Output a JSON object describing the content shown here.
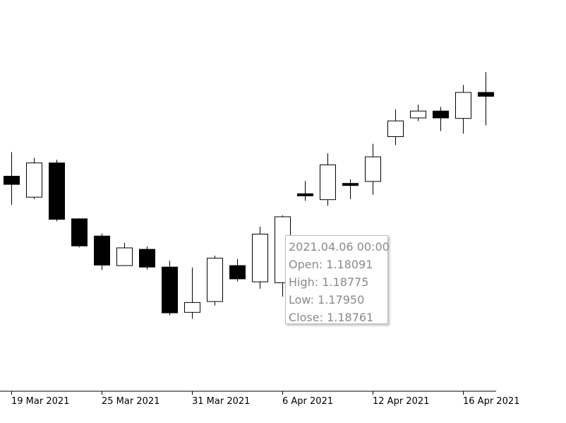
{
  "chart_data": {
    "type": "candlestick",
    "title": "",
    "xlabel": "",
    "ylabel": "",
    "x_tick_labels": [
      "19 Mar 2021",
      "25 Mar 2021",
      "31 Mar 2021",
      "6 Apr 2021",
      "12 Apr 2021",
      "16 Apr 2021"
    ],
    "candles": [
      {
        "open": 1.19173,
        "high": 1.19418,
        "low": 1.18883,
        "close": 1.1909
      },
      {
        "open": 1.1896,
        "high": 1.19361,
        "low": 1.18942,
        "close": 1.19308
      },
      {
        "open": 1.19308,
        "high": 1.1934,
        "low": 1.18715,
        "close": 1.18735
      },
      {
        "open": 1.1874,
        "high": 1.18745,
        "low": 1.1845,
        "close": 1.18465
      },
      {
        "open": 1.18565,
        "high": 1.1859,
        "low": 1.1822,
        "close": 1.1827
      },
      {
        "open": 1.18265,
        "high": 1.18496,
        "low": 1.1826,
        "close": 1.18445
      },
      {
        "open": 1.1843,
        "high": 1.1846,
        "low": 1.18225,
        "close": 1.1825
      },
      {
        "open": 1.1825,
        "high": 1.18315,
        "low": 1.1776,
        "close": 1.17785
      },
      {
        "open": 1.1779,
        "high": 1.18245,
        "low": 1.17725,
        "close": 1.1789
      },
      {
        "open": 1.179,
        "high": 1.18365,
        "low": 1.1786,
        "close": 1.1834
      },
      {
        "open": 1.18265,
        "high": 1.1833,
        "low": 1.18102,
        "close": 1.1813
      },
      {
        "open": 1.181,
        "high": 1.1866,
        "low": 1.1803,
        "close": 1.18585
      },
      {
        "open": 1.18091,
        "high": 1.18775,
        "low": 1.1795,
        "close": 1.18761
      },
      {
        "open": 1.18995,
        "high": 1.19125,
        "low": 1.18923,
        "close": 1.18983
      },
      {
        "open": 1.18935,
        "high": 1.19405,
        "low": 1.18873,
        "close": 1.19288
      },
      {
        "open": 1.191,
        "high": 1.19142,
        "low": 1.1894,
        "close": 1.1909
      },
      {
        "open": 1.1912,
        "high": 1.19502,
        "low": 1.18985,
        "close": 1.1937
      },
      {
        "open": 1.19575,
        "high": 1.19852,
        "low": 1.1949,
        "close": 1.19735
      },
      {
        "open": 1.19765,
        "high": 1.199,
        "low": 1.19733,
        "close": 1.19835
      },
      {
        "open": 1.19835,
        "high": 1.19877,
        "low": 1.19631,
        "close": 1.19765
      },
      {
        "open": 1.1976,
        "high": 1.201,
        "low": 1.19605,
        "close": 1.20024
      },
      {
        "open": 1.20024,
        "high": 1.2023,
        "low": 1.1969,
        "close": 1.19985
      }
    ]
  },
  "tooltip": {
    "datetime": "2021.04.06 00:00",
    "open": "Open: 1.18091",
    "high": "High: 1.18775",
    "low": "Low: 1.17950",
    "close": "Close: 1.18761"
  }
}
